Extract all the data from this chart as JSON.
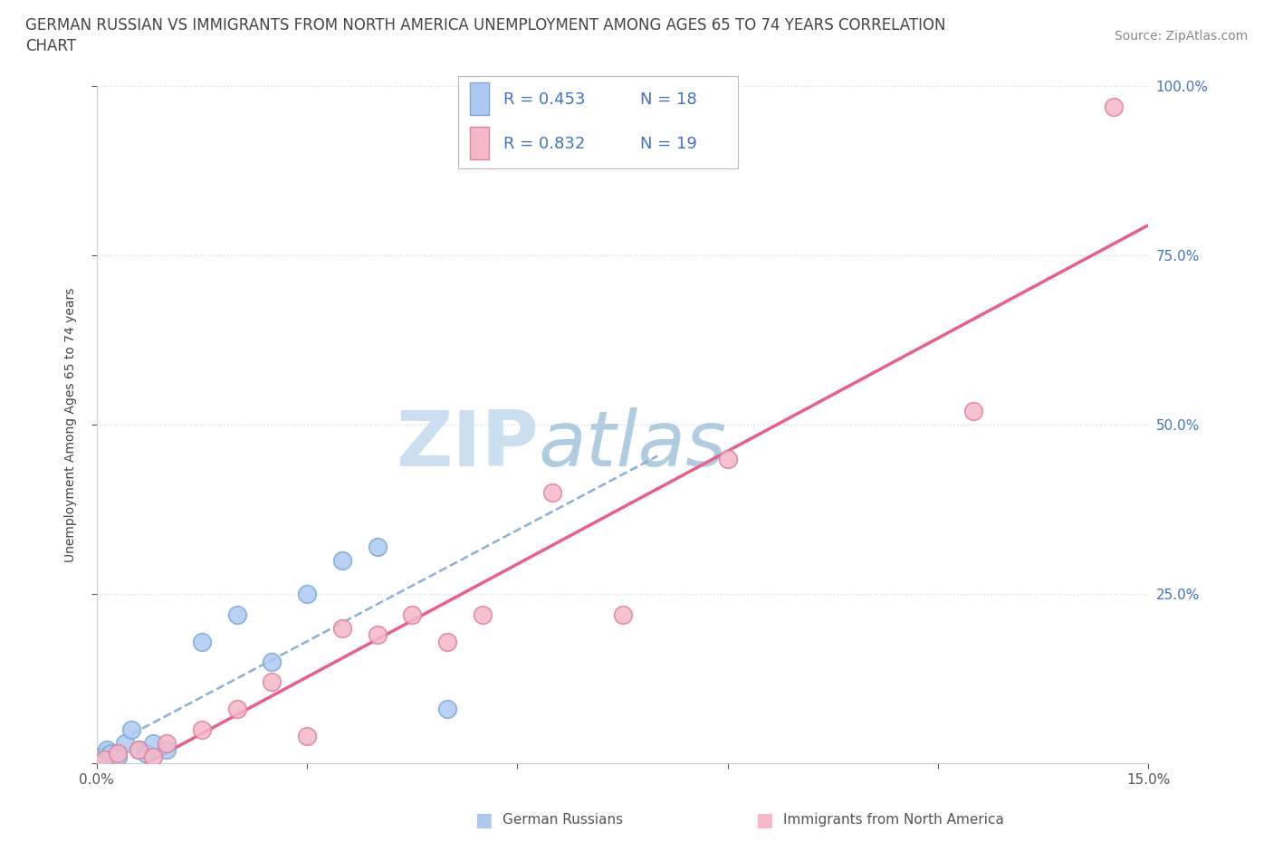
{
  "title_line1": "GERMAN RUSSIAN VS IMMIGRANTS FROM NORTH AMERICA UNEMPLOYMENT AMONG AGES 65 TO 74 YEARS CORRELATION",
  "title_line2": "CHART",
  "source": "Source: ZipAtlas.com",
  "ylabel": "Unemployment Among Ages 65 to 74 years",
  "xlim": [
    0.0,
    15.0
  ],
  "ylim": [
    0.0,
    100.0
  ],
  "series1_color": "#adc9f0",
  "series1_edge": "#7ba8d8",
  "series1_line_color": "#4472c4",
  "series1_dash_color": "#8ab0d8",
  "series1_label": "German Russians",
  "series1_R": 0.453,
  "series1_N": 18,
  "series2_color": "#f5b8c8",
  "series2_edge": "#e080a0",
  "series2_line_color": "#e8608a",
  "series2_label": "Immigrants from North America",
  "series2_R": 0.832,
  "series2_N": 19,
  "text_color_blue": "#4472c4",
  "watermark_zip": "ZIP",
  "watermark_atlas": "atlas",
  "watermark_color_zip": "#c8ddf0",
  "watermark_color_atlas": "#b8cce8",
  "grid_color": "#d8d8d8",
  "background_color": "#ffffff",
  "series1_x": [
    0.05,
    0.1,
    0.15,
    0.2,
    0.3,
    0.4,
    0.5,
    0.6,
    0.7,
    0.8,
    1.0,
    1.5,
    2.0,
    2.5,
    3.0,
    3.5,
    4.0,
    5.0
  ],
  "series1_y": [
    1.0,
    0.5,
    2.0,
    1.5,
    1.0,
    3.0,
    5.0,
    2.0,
    1.5,
    3.0,
    2.0,
    18.0,
    22.0,
    15.0,
    25.0,
    30.0,
    32.0,
    8.0
  ],
  "series2_x": [
    0.1,
    0.3,
    0.6,
    0.8,
    1.0,
    1.5,
    2.0,
    2.5,
    3.0,
    3.5,
    4.0,
    4.5,
    5.0,
    5.5,
    6.5,
    7.5,
    9.0,
    12.5,
    14.5
  ],
  "series2_y": [
    0.5,
    1.5,
    2.0,
    1.0,
    3.0,
    5.0,
    8.0,
    12.0,
    4.0,
    20.0,
    19.0,
    22.0,
    18.0,
    22.0,
    40.0,
    22.0,
    45.0,
    52.0,
    97.0
  ],
  "title_fontsize": 12,
  "axis_label_fontsize": 10,
  "tick_fontsize": 11,
  "source_fontsize": 10,
  "legend_fontsize": 13
}
